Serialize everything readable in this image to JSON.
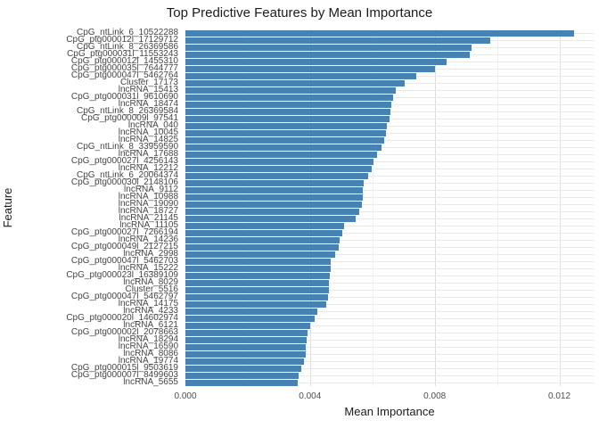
{
  "title": "Top Predictive Features by Mean Importance",
  "chart_data": {
    "type": "bar",
    "orientation": "horizontal",
    "title": "Top Predictive Features by Mean Importance",
    "xlabel": "Mean Importance",
    "ylabel": "Feature",
    "xlim": [
      0,
      0.0131
    ],
    "x_major_ticks": [
      0,
      0.004,
      0.008,
      0.012
    ],
    "x_tick_labels": [
      "0.000",
      "0.004",
      "0.008",
      "0.012"
    ],
    "x_minor_ticks": [
      0.002,
      0.006,
      0.01
    ],
    "grid": true,
    "legend": false,
    "bar_color": "#4682B4",
    "categories": [
      "CpG_ntLink_6_10522288",
      "CpG_ptg000012l_17129712",
      "CpG_ntLink_8_26369586",
      "CpG_ptg000031l_11553243",
      "CpG_ptg000012l_1455310",
      "CpG_ptg000035l_7644777",
      "CpG_ptg000047l_5462764",
      "Cluster_17173",
      "lncRNA_15413",
      "CpG_ptg000031l_9610690",
      "lncRNA_18474",
      "CpG_ntLink_8_26369584",
      "CpG_ptg000009l_97541",
      "lncRNA_040",
      "lncRNA_10045",
      "lncRNA_14825",
      "CpG_ntLink_8_33959590",
      "lncRNA_17688",
      "CpG_ptg000027l_4256143",
      "lncRNA_12212",
      "CpG_ntLink_6_20064374",
      "CpG_ptg000030l_2148106",
      "lncRNA_9112",
      "lncRNA_10988",
      "lncRNA_19090",
      "lncRNA_18727",
      "lncRNA_21145",
      "lncRNA_11105",
      "CpG_ptg000027l_7266194",
      "lncRNA_14236",
      "CpG_ptg000049l_2127215",
      "lncRNA_2998",
      "CpG_ptg000047l_5462703",
      "lncRNA_15222",
      "CpG_ptg000023l_16389109",
      "lncRNA_8029",
      "Cluster_5516",
      "CpG_ptg000047l_5462797",
      "lncRNA_14175",
      "lncRNA_4233",
      "CpG_ptg000020l_14602974",
      "lncRNA_6121",
      "CpG_ptg000002l_2078663",
      "lncRNA_18294",
      "lncRNA_16590",
      "lncRNA_8086",
      "lncRNA_19774",
      "CpG_ptg000015l_9503619",
      "CpG_ptg000007l_8499603",
      "lncRNA_5655"
    ],
    "values": [
      0.01247,
      0.00978,
      0.00918,
      0.00912,
      0.00837,
      0.008,
      0.0074,
      0.00703,
      0.00674,
      0.00665,
      0.0066,
      0.00657,
      0.00655,
      0.00645,
      0.00642,
      0.00637,
      0.00628,
      0.00616,
      0.00602,
      0.00599,
      0.00585,
      0.00571,
      0.00568,
      0.00568,
      0.00567,
      0.00559,
      0.00545,
      0.0051,
      0.00502,
      0.00496,
      0.00493,
      0.00479,
      0.00465,
      0.00465,
      0.00462,
      0.0046,
      0.00459,
      0.00457,
      0.00453,
      0.00424,
      0.00416,
      0.00401,
      0.00393,
      0.00389,
      0.00387,
      0.00386,
      0.00379,
      0.00373,
      0.00364,
      0.00361
    ]
  }
}
